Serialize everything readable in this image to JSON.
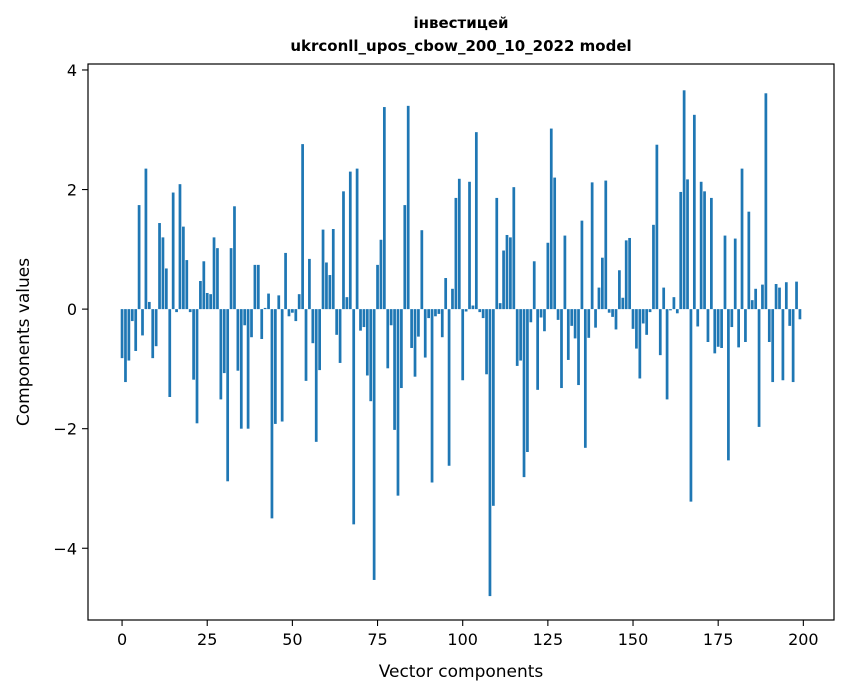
{
  "chart_data": {
    "type": "bar",
    "title_line1": "інвестицей",
    "title_line2": "ukrconll_upos_cbow_200_10_2022 model",
    "xlabel": "Vector components",
    "ylabel": "Components values",
    "xlim": [
      -10,
      209
    ],
    "ylim": [
      -5.2,
      4.1
    ],
    "xticks": [
      0,
      25,
      50,
      75,
      100,
      125,
      150,
      175,
      200
    ],
    "xtick_labels": [
      "0",
      "25",
      "50",
      "75",
      "100",
      "125",
      "150",
      "175",
      "200"
    ],
    "yticks": [
      -4,
      -2,
      0,
      2,
      4
    ],
    "ytick_labels": [
      "−4",
      "−2",
      "0",
      "2",
      "4"
    ],
    "bar_color": "#1f77b4",
    "grid": false,
    "legend": "none",
    "x": [
      0,
      1,
      2,
      3,
      4,
      5,
      6,
      7,
      8,
      9,
      10,
      11,
      12,
      13,
      14,
      15,
      16,
      17,
      18,
      19,
      20,
      21,
      22,
      23,
      24,
      25,
      26,
      27,
      28,
      29,
      30,
      31,
      32,
      33,
      34,
      35,
      36,
      37,
      38,
      39,
      40,
      41,
      42,
      43,
      44,
      45,
      46,
      47,
      48,
      49,
      50,
      51,
      52,
      53,
      54,
      55,
      56,
      57,
      58,
      59,
      60,
      61,
      62,
      63,
      64,
      65,
      66,
      67,
      68,
      69,
      70,
      71,
      72,
      73,
      74,
      75,
      76,
      77,
      78,
      79,
      80,
      81,
      82,
      83,
      84,
      85,
      86,
      87,
      88,
      89,
      90,
      91,
      92,
      93,
      94,
      95,
      96,
      97,
      98,
      99,
      100,
      101,
      102,
      103,
      104,
      105,
      106,
      107,
      108,
      109,
      110,
      111,
      112,
      113,
      114,
      115,
      116,
      117,
      118,
      119,
      120,
      121,
      122,
      123,
      124,
      125,
      126,
      127,
      128,
      129,
      130,
      131,
      132,
      133,
      134,
      135,
      136,
      137,
      138,
      139,
      140,
      141,
      142,
      143,
      144,
      145,
      146,
      147,
      148,
      149,
      150,
      151,
      152,
      153,
      154,
      155,
      156,
      157,
      158,
      159,
      160,
      161,
      162,
      163,
      164,
      165,
      166,
      167,
      168,
      169,
      170,
      171,
      172,
      173,
      174,
      175,
      176,
      177,
      178,
      179,
      180,
      181,
      182,
      183,
      184,
      185,
      186,
      187,
      188,
      189,
      190,
      191,
      192,
      193,
      194,
      195,
      196,
      197,
      198,
      199
    ],
    "values": [
      -0.82,
      -1.22,
      -0.86,
      -0.2,
      -0.7,
      1.74,
      -0.44,
      2.35,
      0.12,
      -0.82,
      -0.62,
      1.44,
      1.2,
      0.68,
      -1.47,
      1.95,
      -0.05,
      2.09,
      1.38,
      0.82,
      -0.05,
      -1.18,
      -1.91,
      0.47,
      0.8,
      0.27,
      0.25,
      1.2,
      1.02,
      -1.51,
      -1.07,
      -2.88,
      1.02,
      1.72,
      -1.03,
      -2.0,
      -0.27,
      -2.0,
      -0.47,
      0.74,
      0.74,
      -0.5,
      0.02,
      0.26,
      -3.5,
      -1.92,
      0.23,
      -1.88,
      0.94,
      -0.12,
      -0.06,
      -0.2,
      0.25,
      2.76,
      -1.2,
      0.84,
      -0.57,
      -2.22,
      -1.02,
      1.33,
      0.78,
      0.57,
      1.34,
      -0.43,
      -0.9,
      1.97,
      0.2,
      2.3,
      -3.6,
      2.35,
      -0.36,
      -0.3,
      -1.11,
      -1.54,
      -4.53,
      0.74,
      1.16,
      3.38,
      -0.99,
      -0.27,
      -2.02,
      -3.12,
      -1.32,
      1.74,
      3.4,
      -0.65,
      -1.13,
      -0.46,
      1.32,
      -0.81,
      -0.15,
      -2.9,
      -0.12,
      -0.08,
      -0.47,
      0.52,
      -2.62,
      0.34,
      1.86,
      2.18,
      -1.19,
      -0.04,
      2.13,
      0.06,
      2.96,
      -0.05,
      -0.15,
      -1.09,
      -4.8,
      -3.29,
      1.86,
      0.1,
      0.98,
      1.24,
      1.2,
      2.04,
      -0.95,
      -0.86,
      -2.81,
      -2.39,
      -0.22,
      0.8,
      -1.35,
      -0.14,
      -0.37,
      1.11,
      3.02,
      2.2,
      -0.18,
      -1.32,
      1.23,
      -0.85,
      -0.28,
      -0.49,
      -1.27,
      1.48,
      -2.32,
      -0.48,
      2.12,
      -0.31,
      0.36,
      0.86,
      2.15,
      -0.06,
      -0.13,
      -0.34,
      0.65,
      0.19,
      1.15,
      1.19,
      -0.33,
      -0.66,
      -1.16,
      -0.24,
      -0.43,
      -0.05,
      1.41,
      2.75,
      -0.77,
      0.36,
      -1.51,
      -0.02,
      0.2,
      -0.07,
      1.96,
      3.66,
      2.17,
      -3.22,
      3.25,
      -0.29,
      2.13,
      1.97,
      -0.55,
      1.86,
      -0.74,
      -0.63,
      -0.65,
      1.23,
      -2.53,
      -0.3,
      1.18,
      -0.64,
      2.35,
      -0.55,
      1.63,
      0.15,
      0.34,
      -1.97,
      0.41,
      3.61,
      -0.55,
      -1.22,
      0.42,
      0.36,
      -1.19,
      0.45,
      -0.28,
      -1.22,
      0.46,
      -0.17
    ]
  }
}
